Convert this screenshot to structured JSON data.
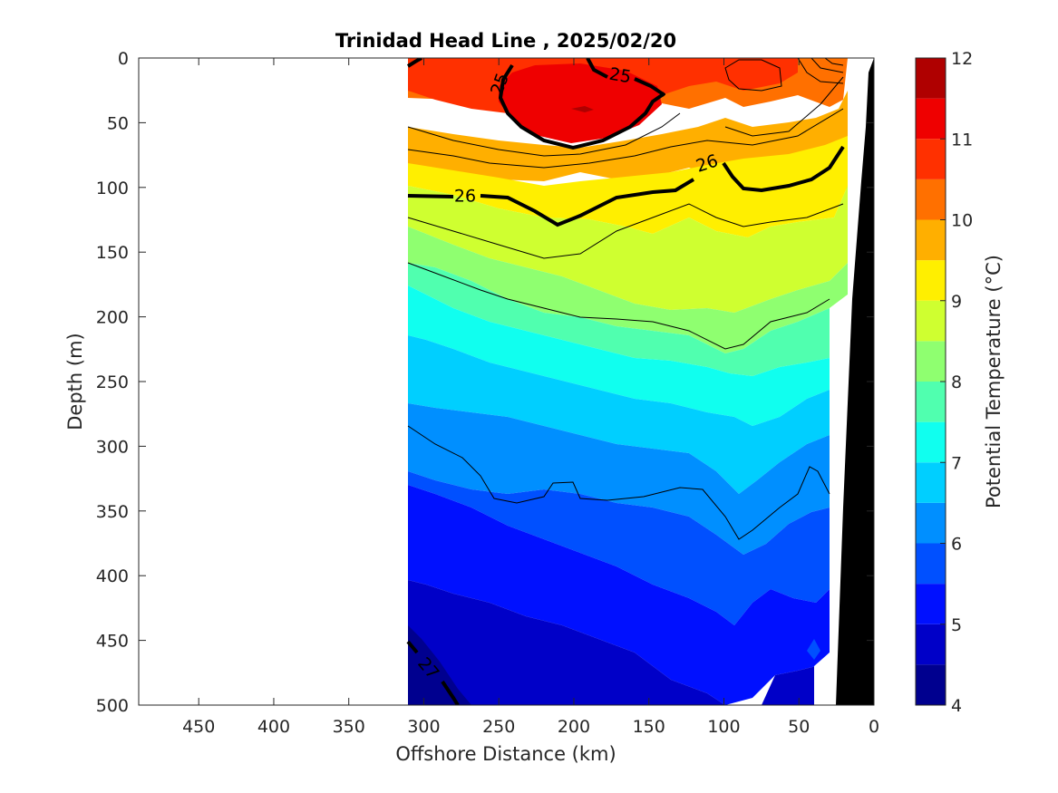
{
  "chart_data": {
    "type": "contourf",
    "title": "Trinidad Head Line , 2025/02/20",
    "xlabel": "Offshore Distance (km)",
    "ylabel": "Depth (m)",
    "xlim": [
      490,
      0
    ],
    "ylim": [
      0,
      500
    ],
    "x_ticks": [
      "450",
      "400",
      "350",
      "300",
      "250",
      "200",
      "150",
      "100",
      "50",
      "0"
    ],
    "y_ticks": [
      "0",
      "50",
      "100",
      "150",
      "200",
      "250",
      "300",
      "350",
      "400",
      "450",
      "500"
    ],
    "colorbar": {
      "label": "Potential Temperature (°C)",
      "range": [
        4,
        12
      ],
      "ticks": [
        "4",
        "5",
        "6",
        "7",
        "8",
        "9",
        "10",
        "11",
        "12"
      ],
      "levels": [
        4,
        4.5,
        5,
        5.5,
        6,
        6.5,
        7,
        7.5,
        8,
        8.5,
        9,
        9.5,
        10,
        10.5,
        11,
        11.5,
        12
      ],
      "colors": [
        "#00008f",
        "#0000c8",
        "#0010ff",
        "#0050ff",
        "#008fff",
        "#00cfff",
        "#10ffef",
        "#50ffaf",
        "#8fff70",
        "#cfff30",
        "#ffef00",
        "#ffaf00",
        "#ff7000",
        "#ff3000",
        "#ef0000",
        "#af0000"
      ]
    },
    "data_extent_km": [
      310,
      20
    ],
    "density_contour_labels": [
      "25",
      "25",
      "26",
      "26",
      "27"
    ],
    "temperature_bands": [
      {
        "range": "11–11.5",
        "depth_top": [
          [
            "210",
            25
          ],
          [
            "190",
            25
          ]
        ]
      },
      {
        "range": "10.5–11",
        "surface_depth_m": 40
      },
      {
        "range": "9.5–10",
        "surface_depth_m": 80
      },
      {
        "range": "8.5–9",
        "depth_m": 125
      },
      {
        "range": "7.5–8",
        "depth_m": 200
      },
      {
        "range": "6.5–7",
        "depth_m": 300
      },
      {
        "range": "5.5–6",
        "depth_m": 420
      }
    ]
  }
}
